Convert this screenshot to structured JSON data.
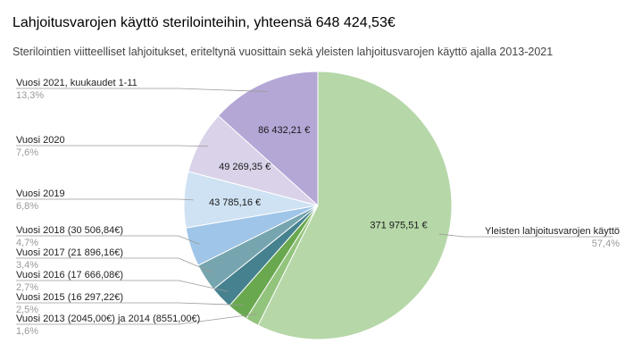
{
  "chart_data": {
    "type": "pie",
    "title": "Lahjoitusvarojen käyttö sterilointeihin, yhteensä 648 424,53€",
    "subtitle": "Sterilointien viitteelliset lahjoitukset, eriteltynä vuosittain sekä yleisten lahjoitusvarojen käyttö ajalla 2013-2021",
    "slices": [
      {
        "label": "Yleisten lahjoitusvarojen käyttö",
        "percent": "57,4%",
        "value": 371975.51,
        "value_label": "371 975,51 €",
        "color": "#b6d7a8"
      },
      {
        "label": "Vuosi 2013 (2045,00€) ja 2014 (8551,00€)",
        "percent": "1,6%",
        "value": 10596.0,
        "value_label": "",
        "color": "#93c47d"
      },
      {
        "label": "Vuosi 2015 (16 297,22€)",
        "percent": "2,5%",
        "value": 16297.22,
        "value_label": "",
        "color": "#6aa84f"
      },
      {
        "label": "Vuosi 2016 (17 666,08€)",
        "percent": "2,7%",
        "value": 17666.08,
        "value_label": "",
        "color": "#45818e"
      },
      {
        "label": "Vuosi 2017 (21 896,16€)",
        "percent": "3,4%",
        "value": 21896.16,
        "value_label": "",
        "color": "#76a5af"
      },
      {
        "label": "Vuosi 2018 (30 506,84€)",
        "percent": "4,7%",
        "value": 30506.84,
        "value_label": "",
        "color": "#9fc5e8"
      },
      {
        "label": "Vuosi 2019",
        "percent": "6,8%",
        "value": 43785.16,
        "value_label": "43 785,16 €",
        "color": "#cfe2f3"
      },
      {
        "label": "Vuosi 2020",
        "percent": "7,6%",
        "value": 49269.35,
        "value_label": "49 269,35 €",
        "color": "#d9d2e9"
      },
      {
        "label": "Vuosi 2021, kuukaudet 1-11",
        "percent": "13,3%",
        "value": 86432.21,
        "value_label": "86 432,21 €",
        "color": "#b4a7d6"
      }
    ]
  }
}
